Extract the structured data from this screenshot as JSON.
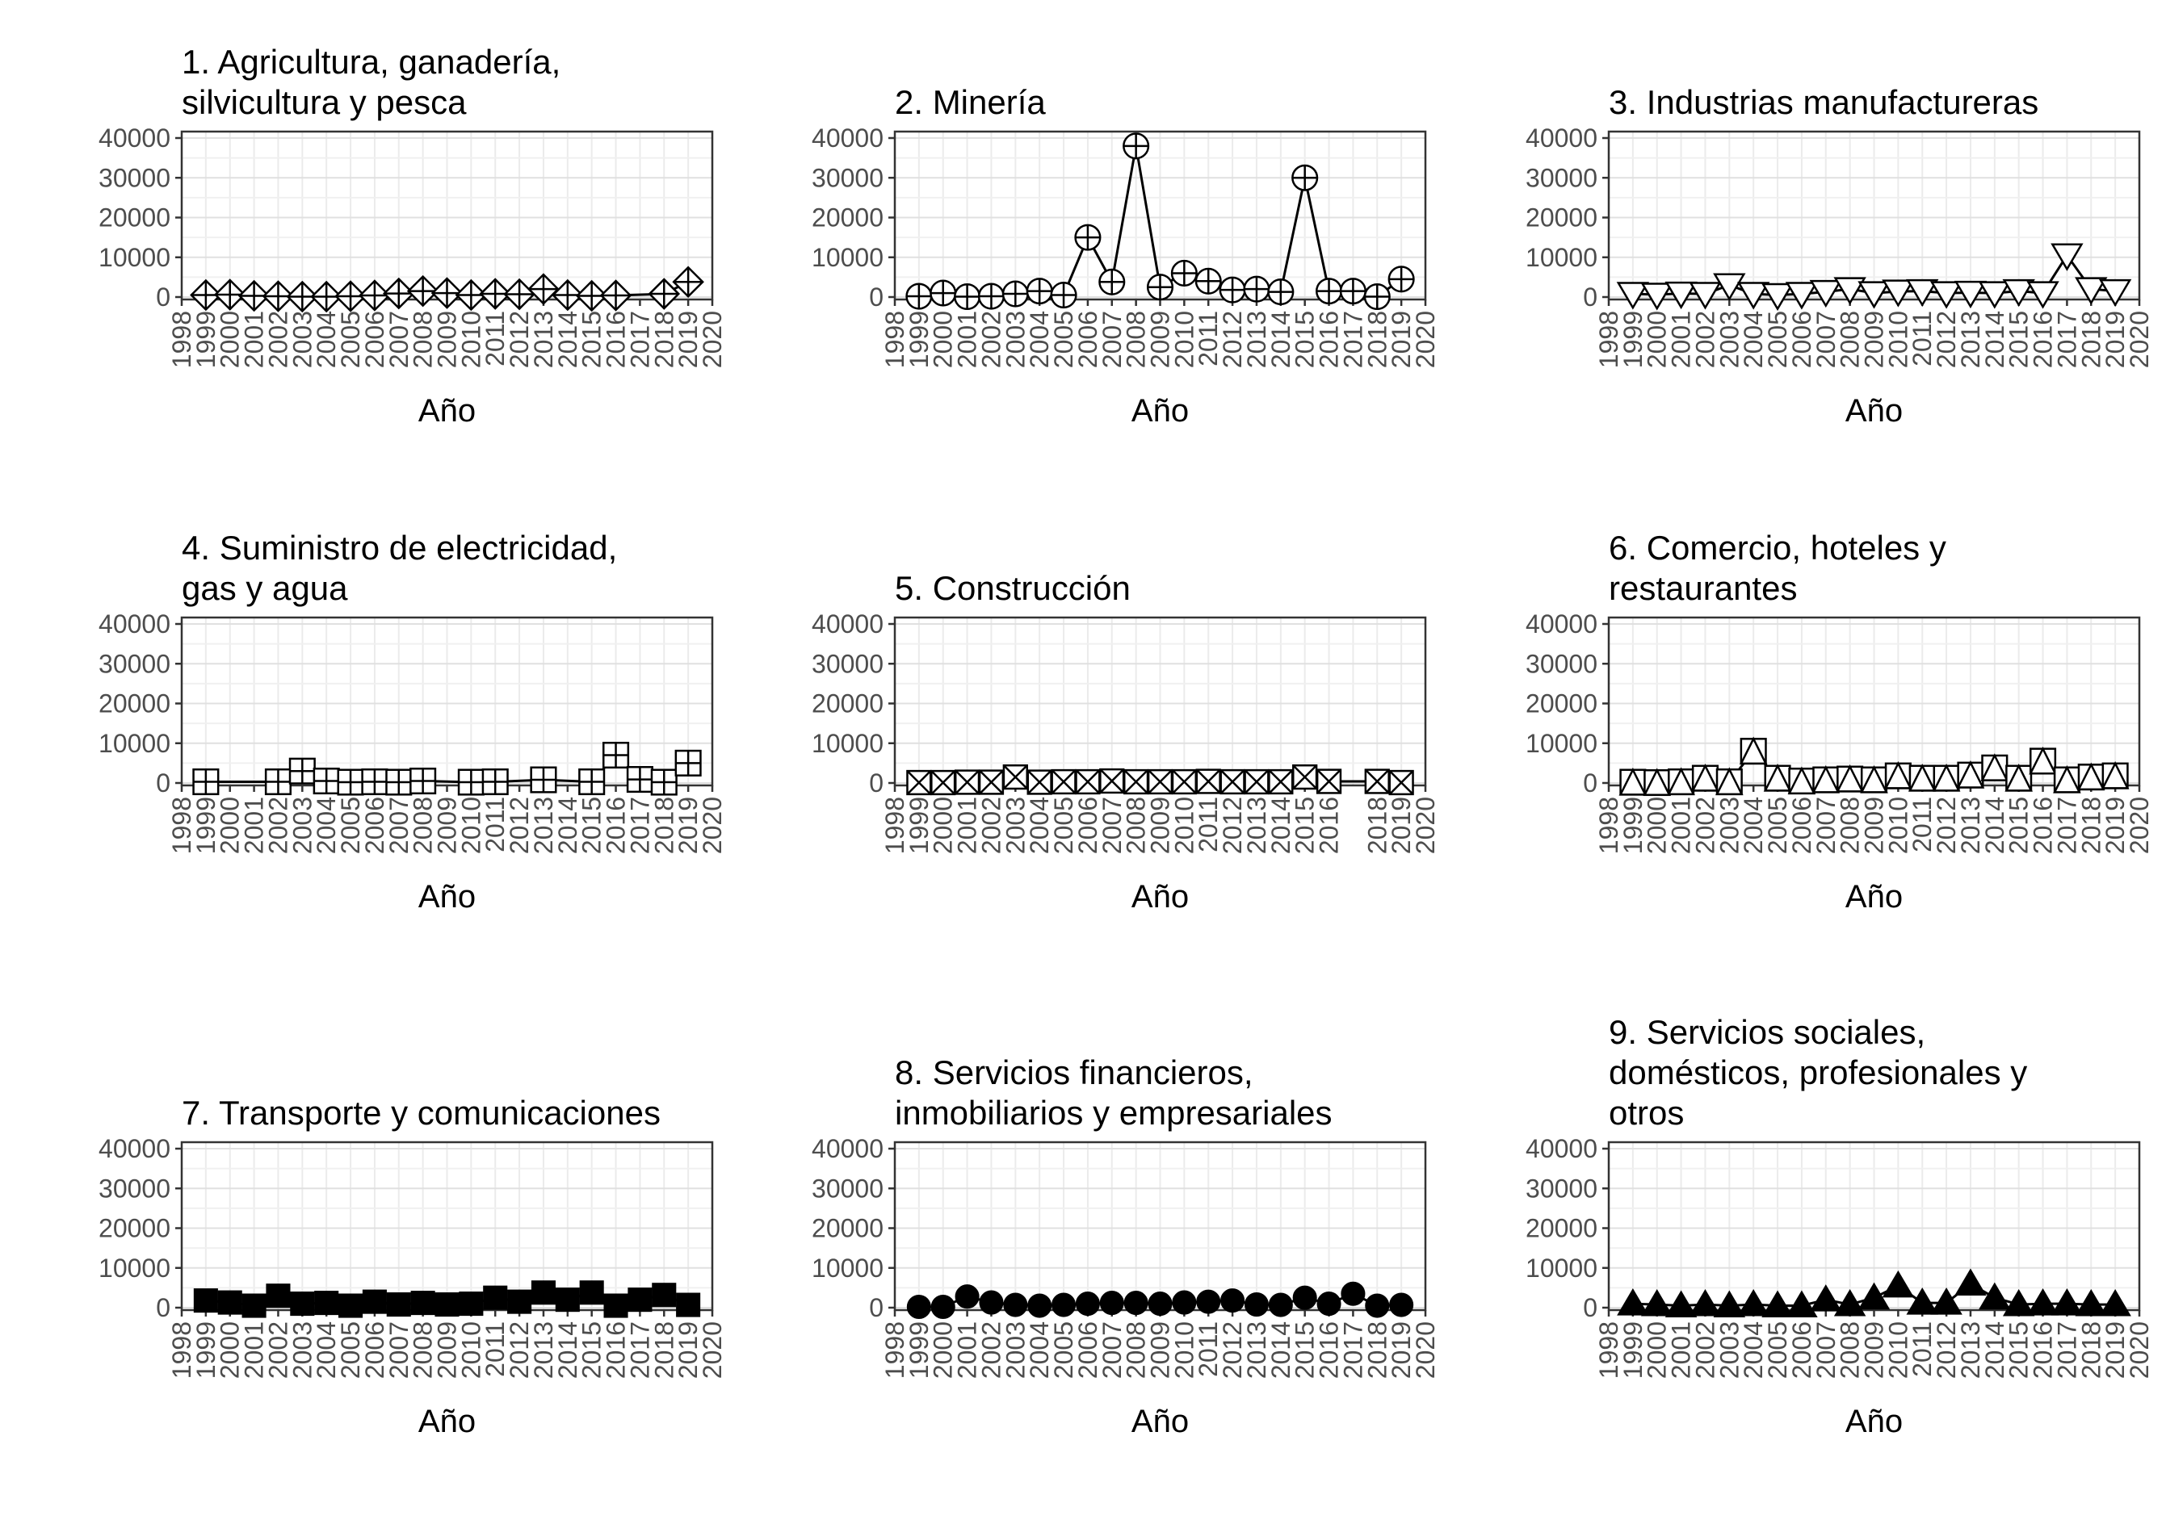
{
  "chart_data": [
    {
      "type": "line",
      "title_lines": [
        "1. Agricultura, ganadería,",
        "silvicultura y pesca"
      ],
      "xlabel": "Año",
      "ylabel": "",
      "xlim": [
        1998,
        2020
      ],
      "ylim": [
        0,
        40000
      ],
      "x_ticks": [
        1998,
        1999,
        2000,
        2001,
        2002,
        2003,
        2004,
        2005,
        2006,
        2007,
        2008,
        2009,
        2010,
        2011,
        2012,
        2013,
        2014,
        2015,
        2016,
        2017,
        2018,
        2019,
        2020
      ],
      "y_ticks": [
        0,
        10000,
        20000,
        30000,
        40000
      ],
      "marker": "diamond-plus",
      "series": [
        {
          "x": [
            1999,
            2000,
            2001,
            2002,
            2003,
            2004,
            2005,
            2006,
            2007,
            2008,
            2009,
            2010,
            2011,
            2012,
            2013,
            2014,
            2015,
            2016,
            2018,
            2019
          ],
          "values": [
            500,
            600,
            300,
            200,
            100,
            100,
            200,
            400,
            900,
            1500,
            1000,
            500,
            800,
            700,
            2000,
            500,
            300,
            400,
            800,
            3800
          ]
        }
      ]
    },
    {
      "type": "line",
      "title_lines": [
        "2. Minería"
      ],
      "xlabel": "Año",
      "ylabel": "",
      "xlim": [
        1998,
        2020
      ],
      "ylim": [
        0,
        40000
      ],
      "x_ticks": [
        1998,
        1999,
        2000,
        2001,
        2002,
        2003,
        2004,
        2005,
        2006,
        2007,
        2008,
        2009,
        2010,
        2011,
        2012,
        2013,
        2014,
        2015,
        2016,
        2017,
        2018,
        2019,
        2020
      ],
      "y_ticks": [
        0,
        10000,
        20000,
        30000,
        40000
      ],
      "marker": "circle-plus",
      "series": [
        {
          "x": [
            1999,
            2000,
            2001,
            2002,
            2003,
            2004,
            2005,
            2006,
            2007,
            2008,
            2009,
            2010,
            2011,
            2012,
            2013,
            2014,
            2015,
            2016,
            2017,
            2018,
            2019
          ],
          "values": [
            200,
            1000,
            100,
            200,
            800,
            1500,
            500,
            15000,
            3800,
            38000,
            2500,
            6000,
            4000,
            1800,
            2000,
            1300,
            30000,
            1500,
            1500,
            100,
            4500
          ]
        }
      ]
    },
    {
      "type": "line",
      "title_lines": [
        "3. Industrias manufactureras"
      ],
      "xlabel": "Año",
      "ylabel": "",
      "xlim": [
        1998,
        2020
      ],
      "ylim": [
        0,
        40000
      ],
      "x_ticks": [
        1998,
        1999,
        2000,
        2001,
        2002,
        2003,
        2004,
        2005,
        2006,
        2007,
        2008,
        2009,
        2010,
        2011,
        2012,
        2013,
        2014,
        2015,
        2016,
        2017,
        2018,
        2019,
        2020
      ],
      "y_ticks": [
        0,
        10000,
        20000,
        30000,
        40000
      ],
      "marker": "triangle-down-open",
      "series": [
        {
          "x": [
            1999,
            2000,
            2001,
            2002,
            2003,
            2004,
            2005,
            2006,
            2007,
            2008,
            2009,
            2010,
            2011,
            2012,
            2013,
            2014,
            2015,
            2016,
            2017,
            2018,
            2019
          ],
          "values": [
            800,
            600,
            900,
            800,
            3000,
            800,
            500,
            800,
            1300,
            2000,
            1000,
            1400,
            1500,
            1000,
            1100,
            1000,
            1500,
            1000,
            10500,
            2000,
            1500
          ]
        }
      ]
    },
    {
      "type": "line",
      "title_lines": [
        "4. Suministro de electricidad,",
        "gas y agua"
      ],
      "xlabel": "Año",
      "ylabel": "",
      "xlim": [
        1998,
        2020
      ],
      "ylim": [
        0,
        40000
      ],
      "x_ticks": [
        1998,
        1999,
        2000,
        2001,
        2002,
        2003,
        2004,
        2005,
        2006,
        2007,
        2008,
        2009,
        2010,
        2011,
        2012,
        2013,
        2014,
        2015,
        2016,
        2017,
        2018,
        2019,
        2020
      ],
      "y_ticks": [
        0,
        10000,
        20000,
        30000,
        40000
      ],
      "marker": "square-plus",
      "series": [
        {
          "x": [
            1999,
            2002,
            2003,
            2004,
            2005,
            2006,
            2007,
            2008,
            2010,
            2011,
            2013,
            2015,
            2016,
            2017,
            2018,
            2019
          ],
          "values": [
            300,
            300,
            3000,
            500,
            200,
            300,
            200,
            500,
            200,
            300,
            800,
            300,
            7000,
            900,
            200,
            5000
          ]
        }
      ]
    },
    {
      "type": "line",
      "title_lines": [
        "5. Construcción"
      ],
      "xlabel": "Año",
      "ylabel": "",
      "xlim": [
        1998,
        2020
      ],
      "ylim": [
        0,
        40000
      ],
      "x_ticks": [
        1998,
        1999,
        2000,
        2001,
        2002,
        2003,
        2004,
        2005,
        2006,
        2007,
        2008,
        2009,
        2010,
        2011,
        2012,
        2013,
        2014,
        2015,
        2016,
        2018,
        2019,
        2020
      ],
      "y_ticks": [
        0,
        10000,
        20000,
        30000,
        40000
      ],
      "marker": "square-x",
      "series": [
        {
          "x": [
            1999,
            2000,
            2001,
            2002,
            2003,
            2004,
            2005,
            2006,
            2007,
            2008,
            2009,
            2010,
            2011,
            2012,
            2013,
            2014,
            2015,
            2016,
            2018,
            2019
          ],
          "values": [
            100,
            100,
            200,
            200,
            1500,
            200,
            300,
            300,
            500,
            300,
            300,
            300,
            400,
            300,
            300,
            300,
            1500,
            400,
            400,
            100
          ]
        }
      ]
    },
    {
      "type": "line",
      "title_lines": [
        "6. Comercio, hoteles y",
        "restaurantes"
      ],
      "xlabel": "Año",
      "ylabel": "",
      "xlim": [
        1998,
        2020
      ],
      "ylim": [
        0,
        40000
      ],
      "x_ticks": [
        1998,
        1999,
        2000,
        2001,
        2002,
        2003,
        2004,
        2005,
        2006,
        2007,
        2008,
        2009,
        2010,
        2011,
        2012,
        2013,
        2014,
        2015,
        2016,
        2017,
        2018,
        2019,
        2020
      ],
      "y_ticks": [
        0,
        10000,
        20000,
        30000,
        40000
      ],
      "marker": "square-triangle",
      "series": [
        {
          "x": [
            1999,
            2000,
            2001,
            2002,
            2003,
            2004,
            2005,
            2006,
            2007,
            2008,
            2009,
            2010,
            2011,
            2012,
            2013,
            2014,
            2015,
            2016,
            2017,
            2018,
            2019
          ],
          "values": [
            200,
            100,
            300,
            1200,
            300,
            8000,
            1200,
            500,
            800,
            1000,
            800,
            1800,
            1200,
            1200,
            2000,
            3800,
            1200,
            5500,
            800,
            1500,
            1800
          ]
        }
      ]
    },
    {
      "type": "line",
      "title_lines": [
        "7. Transporte y comunicaciones"
      ],
      "xlabel": "Año",
      "ylabel": "",
      "xlim": [
        1998,
        2020
      ],
      "ylim": [
        0,
        40000
      ],
      "x_ticks": [
        1998,
        1999,
        2000,
        2001,
        2002,
        2003,
        2004,
        2005,
        2006,
        2007,
        2008,
        2009,
        2010,
        2011,
        2012,
        2013,
        2014,
        2015,
        2016,
        2017,
        2018,
        2019,
        2020
      ],
      "y_ticks": [
        0,
        10000,
        20000,
        30000,
        40000
      ],
      "marker": "square-filled",
      "series": [
        {
          "x": [
            1999,
            2000,
            2001,
            2002,
            2003,
            2004,
            2005,
            2006,
            2007,
            2008,
            2009,
            2010,
            2011,
            2012,
            2013,
            2014,
            2015,
            2016,
            2017,
            2018,
            2019
          ],
          "values": [
            1800,
            1300,
            500,
            3000,
            1000,
            1200,
            500,
            1500,
            800,
            1200,
            800,
            1000,
            2500,
            1500,
            3800,
            2000,
            3800,
            500,
            2000,
            3200,
            700
          ]
        }
      ]
    },
    {
      "type": "line",
      "title_lines": [
        "8. Servicios financieros,",
        "inmobiliarios y empresariales"
      ],
      "xlabel": "Año",
      "ylabel": "",
      "xlim": [
        1998,
        2020
      ],
      "ylim": [
        0,
        40000
      ],
      "x_ticks": [
        1998,
        1999,
        2000,
        2001,
        2002,
        2003,
        2004,
        2005,
        2006,
        2007,
        2008,
        2009,
        2010,
        2011,
        2012,
        2013,
        2014,
        2015,
        2016,
        2017,
        2018,
        2019,
        2020
      ],
      "y_ticks": [
        0,
        10000,
        20000,
        30000,
        40000
      ],
      "marker": "circle-filled",
      "series": [
        {
          "x": [
            1999,
            2000,
            2001,
            2002,
            2003,
            2004,
            2005,
            2006,
            2007,
            2008,
            2009,
            2010,
            2011,
            2012,
            2013,
            2014,
            2015,
            2016,
            2017,
            2018,
            2019
          ],
          "values": [
            200,
            200,
            2800,
            1300,
            700,
            500,
            700,
            1000,
            1200,
            1200,
            1000,
            1300,
            1500,
            1800,
            800,
            700,
            2500,
            1000,
            3500,
            500,
            700
          ]
        }
      ]
    },
    {
      "type": "line",
      "title_lines": [
        "9. Servicios sociales,",
        "domésticos, profesionales y",
        "otros"
      ],
      "xlabel": "Año",
      "ylabel": "",
      "xlim": [
        1998,
        2020
      ],
      "ylim": [
        0,
        40000
      ],
      "x_ticks": [
        1998,
        1999,
        2000,
        2001,
        2002,
        2003,
        2004,
        2005,
        2006,
        2007,
        2008,
        2009,
        2010,
        2011,
        2012,
        2013,
        2014,
        2015,
        2016,
        2017,
        2018,
        2019,
        2020
      ],
      "y_ticks": [
        0,
        10000,
        20000,
        30000,
        40000
      ],
      "marker": "triangle-filled",
      "series": [
        {
          "x": [
            1999,
            2000,
            2001,
            2002,
            2003,
            2004,
            2005,
            2006,
            2007,
            2008,
            2009,
            2010,
            2011,
            2012,
            2013,
            2014,
            2015,
            2016,
            2017,
            2018,
            2019
          ],
          "values": [
            1000,
            800,
            500,
            800,
            500,
            800,
            500,
            500,
            2000,
            800,
            2500,
            5500,
            1200,
            1200,
            6000,
            2500,
            800,
            1000,
            1000,
            800,
            800
          ]
        }
      ]
    }
  ]
}
